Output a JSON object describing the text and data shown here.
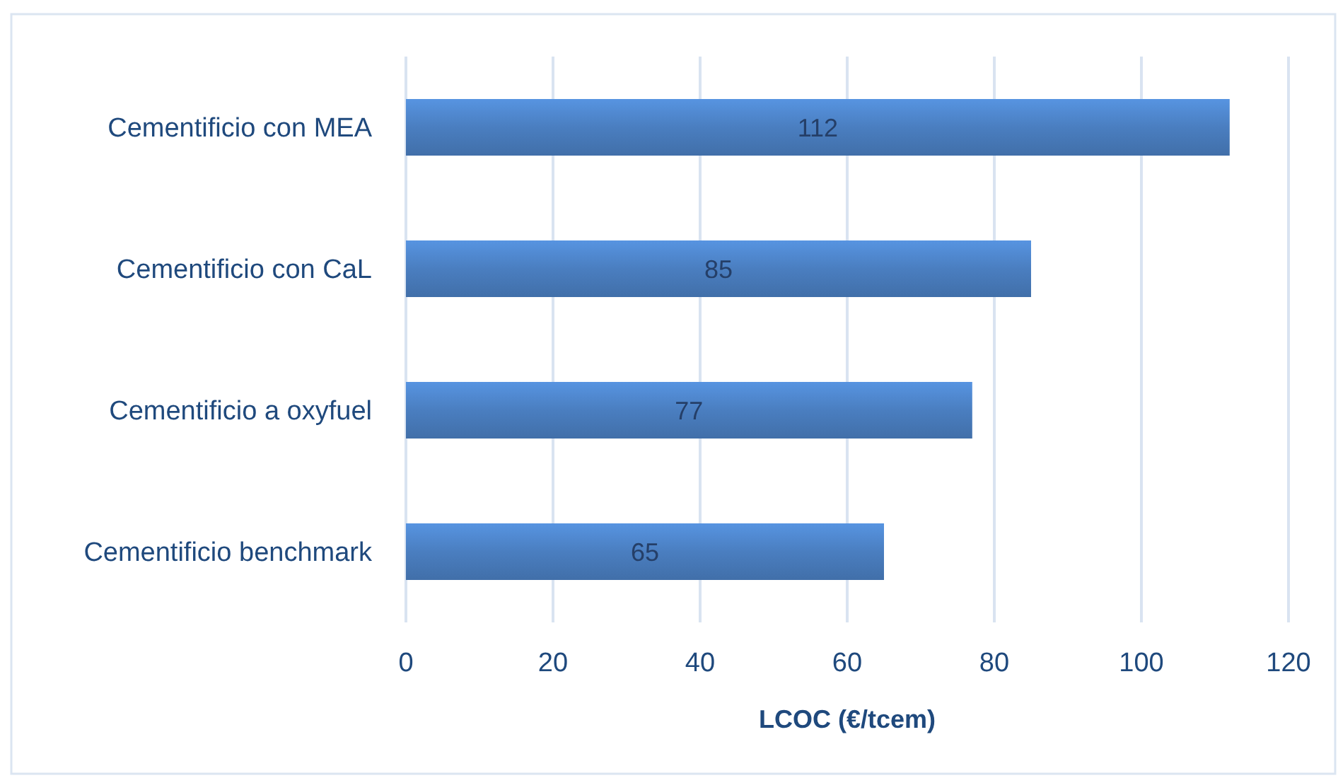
{
  "chart_data": {
    "type": "bar",
    "orientation": "horizontal",
    "categories": [
      "Cementificio con MEA",
      "Cementificio con CaL",
      "Cementificio a oxyfuel",
      "Cementificio benchmark"
    ],
    "values": [
      112,
      85,
      77,
      65
    ],
    "color": "#4a7ec0",
    "xlabel": "LCOC (€/tcem)",
    "xlim": [
      0,
      120
    ],
    "xticks": [
      0,
      20,
      40,
      60,
      80,
      100,
      120
    ],
    "grid": "x",
    "data_labels": true
  }
}
